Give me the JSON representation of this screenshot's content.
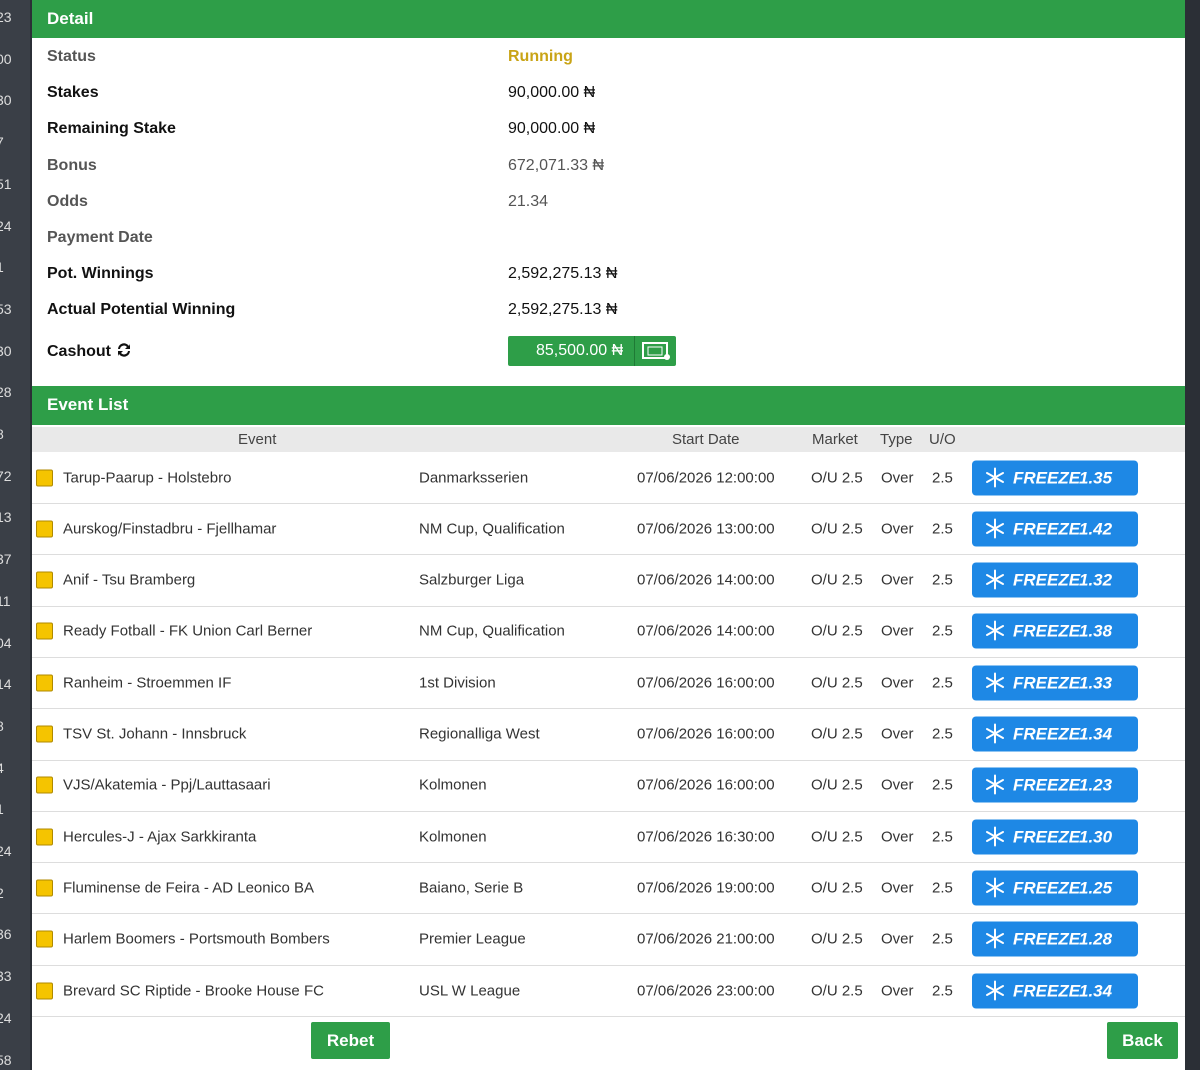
{
  "sidebar": [
    "23",
    "00",
    "30",
    "7",
    "51",
    "24",
    "1",
    "53",
    "30",
    "28",
    "8",
    "72",
    "13",
    "37",
    "11",
    "04",
    "14",
    "8",
    "4",
    "1",
    "24",
    "2",
    "36",
    "33",
    "24",
    "58"
  ],
  "detail": {
    "title": "Detail",
    "rows": [
      [
        "Status",
        "Running"
      ],
      [
        "Stakes",
        "90,000.00 ₦"
      ],
      [
        "Remaining Stake",
        "90,000.00 ₦"
      ],
      [
        "Bonus",
        "672,071.33 ₦"
      ],
      [
        "Odds",
        "21.34"
      ],
      [
        "Payment Date",
        ""
      ],
      [
        "Pot. Winnings",
        "2,592,275.13 ₦"
      ],
      [
        "Actual Potential Winning",
        "2,592,275.13 ₦"
      ]
    ],
    "cashout": {
      "label": "Cashout",
      "value": "85,500.00 ₦"
    }
  },
  "events": {
    "title": "Event List",
    "headers": [
      "Event",
      "Start Date",
      "Market",
      "Type",
      "U/O"
    ],
    "freeze_label": "FREEZE",
    "rows": [
      {
        "event": "Tarup-Paarup - Holstebro",
        "league": "Danmarksserien",
        "start": "07/06/2026 12:00:00",
        "market": "O/U 2.5",
        "type": "Over",
        "uo": "2.5",
        "freeze": "1.35"
      },
      {
        "event": "Aurskog/Finstadbru - Fjellhamar",
        "league": "NM Cup, Qualification",
        "start": "07/06/2026 13:00:00",
        "market": "O/U 2.5",
        "type": "Over",
        "uo": "2.5",
        "freeze": "1.42"
      },
      {
        "event": "Anif - Tsu Bramberg",
        "league": "Salzburger Liga",
        "start": "07/06/2026 14:00:00",
        "market": "O/U 2.5",
        "type": "Over",
        "uo": "2.5",
        "freeze": "1.32"
      },
      {
        "event": "Ready Fotball - FK Union Carl Berner",
        "league": "NM Cup, Qualification",
        "start": "07/06/2026 14:00:00",
        "market": "O/U 2.5",
        "type": "Over",
        "uo": "2.5",
        "freeze": "1.38"
      },
      {
        "event": "Ranheim - Stroemmen IF",
        "league": "1st Division",
        "start": "07/06/2026 16:00:00",
        "market": "O/U 2.5",
        "type": "Over",
        "uo": "2.5",
        "freeze": "1.33"
      },
      {
        "event": "TSV St. Johann - Innsbruck",
        "league": "Regionalliga West",
        "start": "07/06/2026 16:00:00",
        "market": "O/U 2.5",
        "type": "Over",
        "uo": "2.5",
        "freeze": "1.34"
      },
      {
        "event": "VJS/Akatemia - Ppj/Lauttasaari",
        "league": "Kolmonen",
        "start": "07/06/2026 16:00:00",
        "market": "O/U 2.5",
        "type": "Over",
        "uo": "2.5",
        "freeze": "1.23"
      },
      {
        "event": "Hercules-J - Ajax Sarkkiranta",
        "league": "Kolmonen",
        "start": "07/06/2026 16:30:00",
        "market": "O/U 2.5",
        "type": "Over",
        "uo": "2.5",
        "freeze": "1.30"
      },
      {
        "event": "Fluminense de Feira - AD Leonico BA",
        "league": "Baiano, Serie B",
        "start": "07/06/2026 19:00:00",
        "market": "O/U 2.5",
        "type": "Over",
        "uo": "2.5",
        "freeze": "1.25"
      },
      {
        "event": "Harlem Boomers - Portsmouth Bombers",
        "league": "Premier League",
        "start": "07/06/2026 21:00:00",
        "market": "O/U 2.5",
        "type": "Over",
        "uo": "2.5",
        "freeze": "1.28"
      },
      {
        "event": "Brevard SC Riptide - Brooke House FC",
        "league": "USL W League",
        "start": "07/06/2026 23:00:00",
        "market": "O/U 2.5",
        "type": "Over",
        "uo": "2.5",
        "freeze": "1.34"
      }
    ]
  },
  "buttons": {
    "rebet": "Rebet",
    "back": "Back"
  }
}
